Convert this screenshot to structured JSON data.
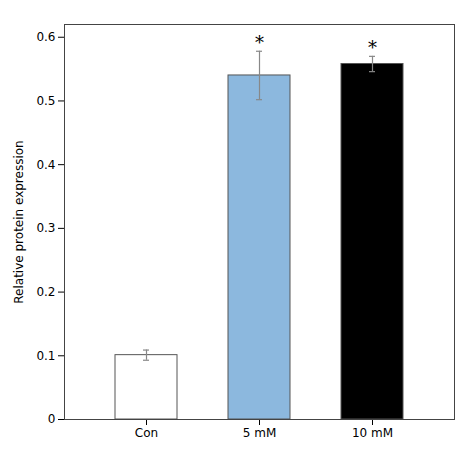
{
  "chart_data": {
    "type": "bar",
    "categories": [
      "Con",
      "5 mM",
      "10 mM"
    ],
    "values": [
      0.101,
      0.54,
      0.558
    ],
    "errors": [
      0.008,
      0.038,
      0.012
    ],
    "annotations": [
      null,
      "*",
      "*"
    ],
    "colors": [
      "#ffffff",
      "#8cb8de",
      "#000000"
    ],
    "ylabel": "Relative protein expression",
    "ylim": [
      0,
      0.62
    ],
    "yticks": [
      0,
      0.1,
      0.2,
      0.3,
      0.4,
      0.5,
      0.6
    ],
    "grid": false
  }
}
